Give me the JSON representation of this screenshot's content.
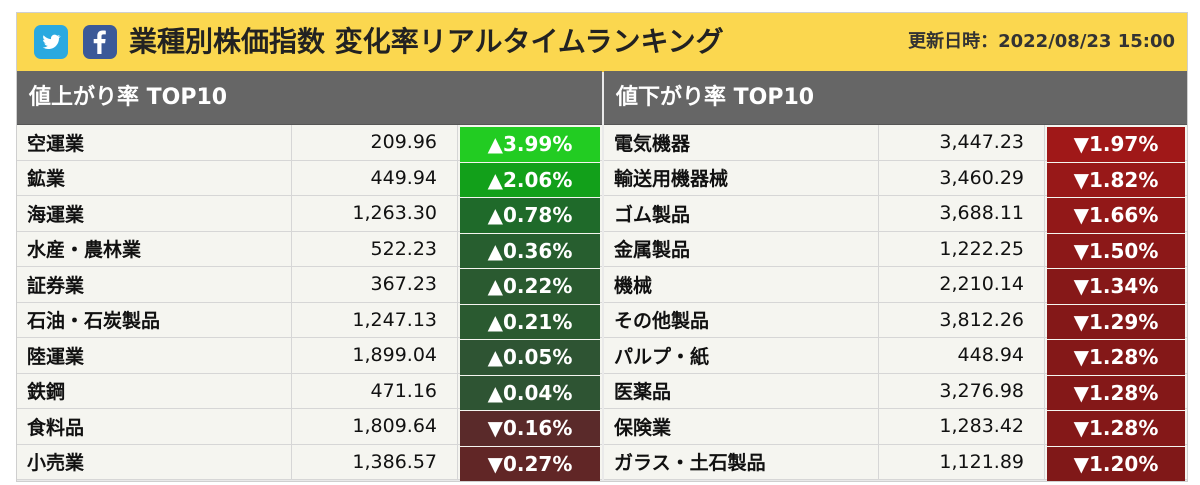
{
  "header": {
    "title": "業種別株価指数 変化率リアルタイムランキング",
    "updated": "更新日時：2022/08/23 15:00",
    "icons": [
      "twitter-icon",
      "facebook-icon"
    ]
  },
  "left": {
    "title": "値上がり率 TOP10",
    "rows": [
      {
        "name": "空運業",
        "value": "209.96",
        "change": "▲3.99%",
        "color": "#22cc22"
      },
      {
        "name": "鉱業",
        "value": "449.94",
        "change": "▲2.06%",
        "color": "#12a01a"
      },
      {
        "name": "海運業",
        "value": "1,263.30",
        "change": "▲0.78%",
        "color": "#1f6a2a"
      },
      {
        "name": "水産・農林業",
        "value": "522.23",
        "change": "▲0.36%",
        "color": "#275e2f"
      },
      {
        "name": "証券業",
        "value": "367.23",
        "change": "▲0.22%",
        "color": "#2a5a30"
      },
      {
        "name": "石油・石炭製品",
        "value": "1,247.13",
        "change": "▲0.21%",
        "color": "#2a5a30"
      },
      {
        "name": "陸運業",
        "value": "1,899.04",
        "change": "▲0.05%",
        "color": "#2e5433"
      },
      {
        "name": "鉄鋼",
        "value": "471.16",
        "change": "▲0.04%",
        "color": "#2e5433"
      },
      {
        "name": "食料品",
        "value": "1,809.64",
        "change": "▼0.16%",
        "color": "#5a2a2a"
      },
      {
        "name": "小売業",
        "value": "1,386.57",
        "change": "▼0.27%",
        "color": "#612626"
      }
    ]
  },
  "right": {
    "title": "値下がり率 TOP10",
    "rows": [
      {
        "name": "電気機器",
        "value": "3,447.23",
        "change": "▼1.97%",
        "color": "#a01818"
      },
      {
        "name": "輸送用機器械",
        "value": "3,460.29",
        "change": "▼1.82%",
        "color": "#981818"
      },
      {
        "name": "ゴム製品",
        "value": "3,688.11",
        "change": "▼1.66%",
        "color": "#921818"
      },
      {
        "name": "金属製品",
        "value": "1,222.25",
        "change": "▼1.50%",
        "color": "#8c1818"
      },
      {
        "name": "機械",
        "value": "2,210.14",
        "change": "▼1.34%",
        "color": "#861818"
      },
      {
        "name": "その他製品",
        "value": "3,812.26",
        "change": "▼1.29%",
        "color": "#841818"
      },
      {
        "name": "パルプ・紙",
        "value": "448.94",
        "change": "▼1.28%",
        "color": "#841818"
      },
      {
        "name": "医薬品",
        "value": "3,276.98",
        "change": "▼1.28%",
        "color": "#841818"
      },
      {
        "name": "保険業",
        "value": "1,283.42",
        "change": "▼1.28%",
        "color": "#841818"
      },
      {
        "name": "ガラス・土石製品",
        "value": "1,121.89",
        "change": "▼1.20%",
        "color": "#801818"
      }
    ]
  }
}
